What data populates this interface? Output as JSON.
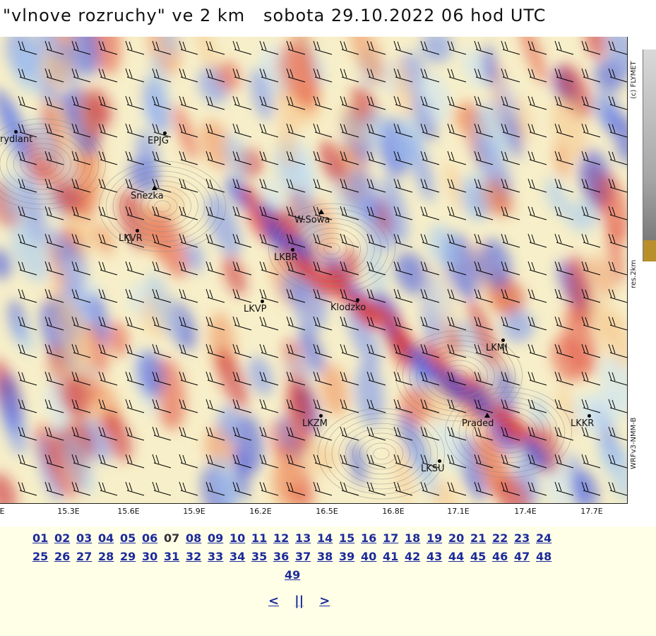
{
  "title": "\"vlnove rozruchy\" ve 2 km   sobota 29.10.2022 06 hod UTC",
  "side_labels": {
    "credit": "(c) FLYMET",
    "resolution": "res.2km",
    "model": "WRFv3-NMM-B"
  },
  "x_axis_ticks": [
    "E",
    "15.3E",
    "15.6E",
    "15.9E",
    "16.2E",
    "16.5E",
    "16.8E",
    "17.1E",
    "17.4E",
    "17.7E"
  ],
  "stations": [
    {
      "id": "frydlant",
      "label": "rydlant",
      "marker": "dot"
    },
    {
      "id": "epjg",
      "label": "EPJG",
      "marker": "dot"
    },
    {
      "id": "snezka",
      "label": "Snezka",
      "marker": "triangle"
    },
    {
      "id": "lkvr",
      "label": "LKVR",
      "marker": "dot"
    },
    {
      "id": "wsowa",
      "label": "W.Sowa",
      "marker": "triangle"
    },
    {
      "id": "lkbr",
      "label": "LKBR",
      "marker": "dot"
    },
    {
      "id": "lkvp",
      "label": "LKVP",
      "marker": "dot"
    },
    {
      "id": "klodzko",
      "label": "Klodzko",
      "marker": "dot"
    },
    {
      "id": "lkmi",
      "label": "LKMI",
      "marker": "dot"
    },
    {
      "id": "lkzm",
      "label": "LKZM",
      "marker": "dot"
    },
    {
      "id": "praded",
      "label": "Praded",
      "marker": "triangle"
    },
    {
      "id": "lkkr",
      "label": "LKKR",
      "marker": "dot"
    },
    {
      "id": "lksu",
      "label": "LKSU",
      "marker": "dot"
    }
  ],
  "frames_row1": [
    "01",
    "02",
    "03",
    "04",
    "05",
    "06",
    "07",
    "08",
    "09",
    "10",
    "11",
    "12",
    "13",
    "14",
    "15",
    "16",
    "17",
    "18",
    "19",
    "20",
    "21",
    "22",
    "23",
    "24"
  ],
  "frames_row2": [
    "25",
    "26",
    "27",
    "28",
    "29",
    "30",
    "31",
    "32",
    "33",
    "34",
    "35",
    "36",
    "37",
    "38",
    "39",
    "40",
    "41",
    "42",
    "43",
    "44",
    "45",
    "46",
    "47",
    "48"
  ],
  "frames_row3": [
    "49"
  ],
  "current_frame": "07",
  "nav": {
    "prev": "<",
    "pause": "||",
    "next": ">"
  }
}
